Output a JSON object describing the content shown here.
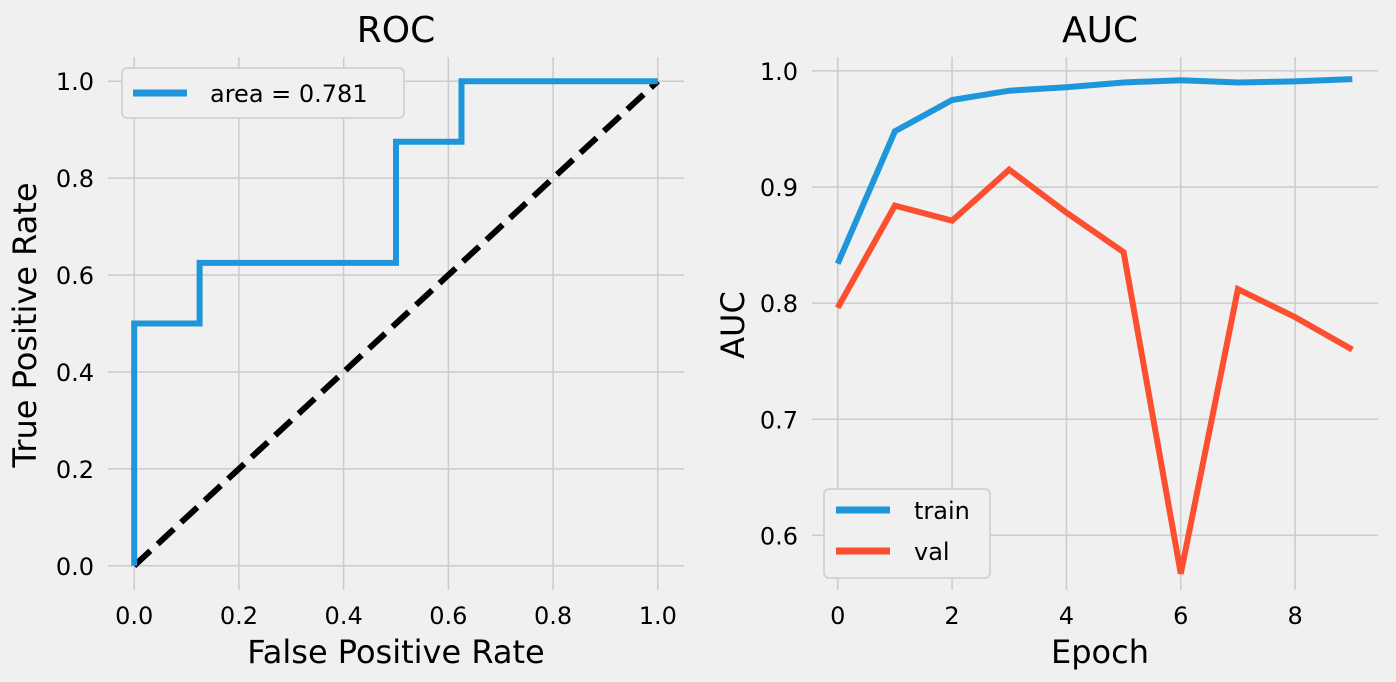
{
  "colors": {
    "background": "#f0f0f0",
    "grid": "#cbcbcb",
    "blue": "#1f96d9",
    "red": "#fc4f30",
    "diagonal": "#000000"
  },
  "chart_data": [
    {
      "type": "line",
      "title": "ROC",
      "xlabel": "False Positive Rate",
      "ylabel": "True Positive Rate",
      "xlim": [
        -0.05,
        1.05
      ],
      "ylim": [
        -0.05,
        1.05
      ],
      "xticks": [
        0.0,
        0.2,
        0.4,
        0.6,
        0.8,
        1.0
      ],
      "yticks": [
        0.0,
        0.2,
        0.4,
        0.6,
        0.8,
        1.0
      ],
      "xtick_labels": [
        "0.0",
        "0.2",
        "0.4",
        "0.6",
        "0.8",
        "1.0"
      ],
      "ytick_labels": [
        "0.0",
        "0.2",
        "0.4",
        "0.6",
        "0.8",
        "1.0"
      ],
      "grid": true,
      "legend_position": "top-left",
      "series": [
        {
          "name": "area = 0.781",
          "color": "#1f96d9",
          "x": [
            0.0,
            0.0,
            0.125,
            0.125,
            0.5,
            0.5,
            0.625,
            0.625,
            1.0
          ],
          "y": [
            0.0,
            0.5,
            0.5,
            0.625,
            0.625,
            0.875,
            0.875,
            1.0,
            1.0
          ]
        }
      ],
      "reference_line": {
        "x": [
          0.0,
          1.0
        ],
        "y": [
          0.0,
          1.0
        ],
        "color": "#000000",
        "style": "dashed"
      }
    },
    {
      "type": "line",
      "title": "AUC",
      "xlabel": "Epoch",
      "ylabel": "AUC",
      "xlim": [
        -0.45,
        9.45
      ],
      "ylim": [
        0.553,
        1.012
      ],
      "xticks": [
        0,
        2,
        4,
        6,
        8
      ],
      "yticks": [
        0.6,
        0.7,
        0.8,
        0.9,
        1.0
      ],
      "xtick_labels": [
        "0",
        "2",
        "4",
        "6",
        "8"
      ],
      "ytick_labels": [
        "0.6",
        "0.7",
        "0.8",
        "0.9",
        "1.0"
      ],
      "grid": true,
      "legend_position": "bottom-left",
      "series": [
        {
          "name": "train",
          "color": "#1f96d9",
          "x": [
            0,
            1,
            2,
            3,
            4,
            5,
            6,
            7,
            8,
            9
          ],
          "y": [
            0.834,
            0.948,
            0.975,
            0.983,
            0.986,
            0.99,
            0.992,
            0.99,
            0.991,
            0.993
          ]
        },
        {
          "name": "val",
          "color": "#fc4f30",
          "x": [
            0,
            1,
            2,
            3,
            4,
            5,
            6,
            7,
            8,
            9
          ],
          "y": [
            0.796,
            0.884,
            0.871,
            0.915,
            0.878,
            0.844,
            0.567,
            0.812,
            0.788,
            0.76
          ]
        }
      ]
    }
  ]
}
